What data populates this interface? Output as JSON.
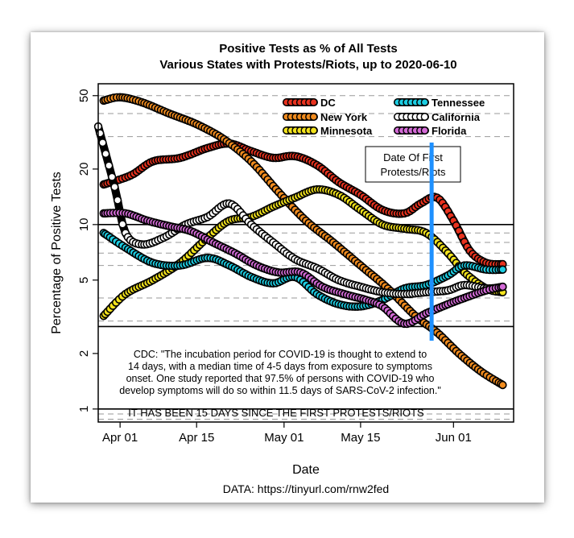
{
  "chart_data": {
    "type": "line",
    "title": "Positive Tests as % of All Tests",
    "subtitle": "Various States with Protests/Riots, up to 2020-06-10",
    "xlabel": "Date",
    "ylabel": "Percentage of Positive Tests",
    "y_scale": "log",
    "ylim": [
      0.85,
      58
    ],
    "xlim": [
      "2020-03-28",
      "2020-06-12"
    ],
    "y_ticks": [
      1,
      2,
      5,
      10,
      20,
      50
    ],
    "x_ticks": [
      {
        "date": "2020-04-01",
        "label": "Apr 01"
      },
      {
        "date": "2020-04-15",
        "label": "Apr 15"
      },
      {
        "date": "2020-05-01",
        "label": "May 01"
      },
      {
        "date": "2020-05-15",
        "label": "May 15"
      },
      {
        "date": "2020-06-01",
        "label": "Jun 01"
      }
    ],
    "solid_hlines": [
      1,
      2.8,
      10
    ],
    "dashed_hlines": [
      0.88,
      0.94,
      3,
      4,
      6,
      7,
      8,
      9,
      30,
      40,
      50
    ],
    "legend_position": "top-right",
    "series": [
      {
        "name": "DC",
        "color": "#e8321e",
        "points": [
          [
            "2020-03-29",
            16.5
          ],
          [
            "2020-04-03",
            18.5
          ],
          [
            "2020-04-07",
            22
          ],
          [
            "2020-04-12",
            23
          ],
          [
            "2020-04-17",
            26
          ],
          [
            "2020-04-21",
            27.5
          ],
          [
            "2020-04-25",
            25
          ],
          [
            "2020-04-29",
            23
          ],
          [
            "2020-05-03",
            23.5
          ],
          [
            "2020-05-07",
            21
          ],
          [
            "2020-05-11",
            17
          ],
          [
            "2020-05-15",
            14.5
          ],
          [
            "2020-05-19",
            12
          ],
          [
            "2020-05-23",
            11.5
          ],
          [
            "2020-05-26",
            13
          ],
          [
            "2020-05-29",
            14
          ],
          [
            "2020-06-01",
            10.5
          ],
          [
            "2020-06-04",
            7.2
          ],
          [
            "2020-06-07",
            6.2
          ],
          [
            "2020-06-10",
            6.1
          ]
        ]
      },
      {
        "name": "New York",
        "color": "#f08b1e",
        "points": [
          [
            "2020-03-29",
            47
          ],
          [
            "2020-04-01",
            49
          ],
          [
            "2020-04-05",
            46
          ],
          [
            "2020-04-10",
            40
          ],
          [
            "2020-04-15",
            35
          ],
          [
            "2020-04-20",
            29
          ],
          [
            "2020-04-25",
            22
          ],
          [
            "2020-04-30",
            15
          ],
          [
            "2020-05-05",
            10.5
          ],
          [
            "2020-05-10",
            8
          ],
          [
            "2020-05-15",
            6
          ],
          [
            "2020-05-20",
            4.5
          ],
          [
            "2020-05-25",
            3.2
          ],
          [
            "2020-05-29",
            2.6
          ],
          [
            "2020-06-02",
            2
          ],
          [
            "2020-06-06",
            1.6
          ],
          [
            "2020-06-10",
            1.35
          ]
        ]
      },
      {
        "name": "Minnesota",
        "color": "#f2e21c",
        "points": [
          [
            "2020-03-29",
            3.2
          ],
          [
            "2020-04-02",
            4.2
          ],
          [
            "2020-04-07",
            5
          ],
          [
            "2020-04-12",
            6.2
          ],
          [
            "2020-04-17",
            8.5
          ],
          [
            "2020-04-21",
            10.5
          ],
          [
            "2020-04-25",
            11
          ],
          [
            "2020-04-29",
            12.5
          ],
          [
            "2020-05-03",
            14
          ],
          [
            "2020-05-07",
            15.5
          ],
          [
            "2020-05-11",
            14.5
          ],
          [
            "2020-05-15",
            12
          ],
          [
            "2020-05-19",
            10
          ],
          [
            "2020-05-23",
            9.5
          ],
          [
            "2020-05-27",
            9
          ],
          [
            "2020-05-31",
            7
          ],
          [
            "2020-06-03",
            5.5
          ],
          [
            "2020-06-07",
            4.5
          ],
          [
            "2020-06-10",
            4.3
          ]
        ]
      },
      {
        "name": "Tennessee",
        "color": "#1ccde2",
        "points": [
          [
            "2020-03-29",
            9
          ],
          [
            "2020-04-02",
            7.5
          ],
          [
            "2020-04-07",
            6.2
          ],
          [
            "2020-04-12",
            6
          ],
          [
            "2020-04-17",
            6.6
          ],
          [
            "2020-04-21",
            6
          ],
          [
            "2020-04-25",
            5.2
          ],
          [
            "2020-04-29",
            4.8
          ],
          [
            "2020-05-03",
            5.2
          ],
          [
            "2020-05-07",
            4.2
          ],
          [
            "2020-05-11",
            3.7
          ],
          [
            "2020-05-15",
            3.6
          ],
          [
            "2020-05-19",
            3.9
          ],
          [
            "2020-05-23",
            4.5
          ],
          [
            "2020-05-27",
            4.7
          ],
          [
            "2020-05-31",
            5.3
          ],
          [
            "2020-06-03",
            6
          ],
          [
            "2020-06-07",
            5.7
          ],
          [
            "2020-06-10",
            5.7
          ]
        ]
      },
      {
        "name": "California",
        "color": "#ffffff",
        "points": [
          [
            "2020-03-28",
            34
          ],
          [
            "2020-03-31",
            16
          ],
          [
            "2020-04-02",
            9
          ],
          [
            "2020-04-05",
            7.8
          ],
          [
            "2020-04-09",
            8.5
          ],
          [
            "2020-04-13",
            10
          ],
          [
            "2020-04-17",
            11
          ],
          [
            "2020-04-21",
            13
          ],
          [
            "2020-04-25",
            10
          ],
          [
            "2020-04-29",
            8
          ],
          [
            "2020-05-03",
            6.5
          ],
          [
            "2020-05-07",
            5.8
          ],
          [
            "2020-05-11",
            5
          ],
          [
            "2020-05-15",
            4.6
          ],
          [
            "2020-05-19",
            4.3
          ],
          [
            "2020-05-23",
            4.2
          ],
          [
            "2020-05-27",
            4.3
          ],
          [
            "2020-05-31",
            4.4
          ],
          [
            "2020-06-03",
            4.7
          ],
          [
            "2020-06-07",
            4.5
          ],
          [
            "2020-06-10",
            4.6
          ]
        ]
      },
      {
        "name": "Florida",
        "color": "#d36ad6",
        "points": [
          [
            "2020-03-29",
            11.5
          ],
          [
            "2020-04-02",
            11.5
          ],
          [
            "2020-04-06",
            10.5
          ],
          [
            "2020-04-10",
            9.8
          ],
          [
            "2020-04-14",
            9.2
          ],
          [
            "2020-04-18",
            8
          ],
          [
            "2020-04-22",
            7
          ],
          [
            "2020-04-26",
            6
          ],
          [
            "2020-04-30",
            5.5
          ],
          [
            "2020-05-04",
            5.5
          ],
          [
            "2020-05-08",
            4.6
          ],
          [
            "2020-05-12",
            4.2
          ],
          [
            "2020-05-16",
            3.9
          ],
          [
            "2020-05-19",
            3.6
          ],
          [
            "2020-05-23",
            2.9
          ],
          [
            "2020-05-27",
            3.3
          ],
          [
            "2020-05-31",
            3.7
          ],
          [
            "2020-06-03",
            4
          ],
          [
            "2020-06-07",
            4.4
          ],
          [
            "2020-06-10",
            4.6
          ]
        ]
      }
    ],
    "vline": {
      "date": "2020-05-28",
      "color": "#1e90ff",
      "label_lines": [
        "Date Of First",
        "Protests/Riots"
      ]
    },
    "note_lines": [
      "CDC: \"The incubation period for COVID-19 is thought to extend to",
      "14 days, with a median time of 4-5 days from exposure to symptoms",
      "onset. One study reported that 97.5% of persons with COVID-19 who",
      "develop symptoms will do so within 11.5 days of SARS-CoV-2 infection.\""
    ],
    "banner": "IT HAS BEEN 15 DAYS SINCE THE FIRST PROTESTS/RIOTS",
    "source": "DATA: https://tinyurl.com/rnw2fed"
  }
}
